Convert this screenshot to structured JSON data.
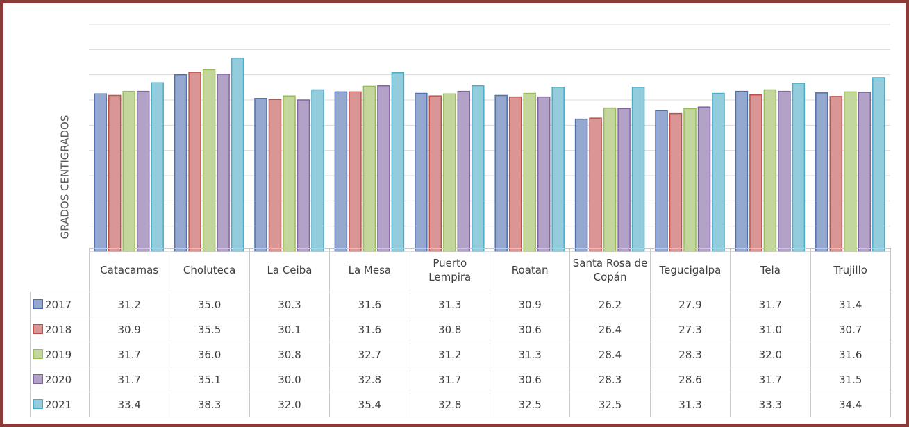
{
  "chart_data": {
    "type": "bar",
    "y_label": "GRADOS CENTIGRADOS",
    "categories": [
      "Catacamas",
      "Choluteca",
      "La Ceiba",
      "La Mesa",
      "Puerto Lempira",
      "Roatan",
      "Santa Rosa de Copán",
      "Tegucigalpa",
      "Tela",
      "Trujillo"
    ],
    "ylim": [
      0,
      45
    ],
    "yticks": [
      0,
      5,
      10,
      15,
      20,
      25,
      30,
      35,
      40,
      45
    ],
    "grid": true,
    "series": [
      {
        "name": "2017",
        "color": "#95a9d0",
        "edge": "#4f6faf",
        "values": [
          31.2,
          35.0,
          30.3,
          31.6,
          31.3,
          30.9,
          26.2,
          27.9,
          31.7,
          31.4
        ],
        "value_labels": [
          "31.2",
          "35.0",
          "30.3",
          "31.6",
          "31.3",
          "30.9",
          "26.2",
          "27.9",
          "31.7",
          "31.4"
        ]
      },
      {
        "name": "2018",
        "color": "#d99694",
        "edge": "#c0504d",
        "values": [
          30.9,
          35.5,
          30.1,
          31.6,
          30.8,
          30.6,
          26.4,
          27.3,
          31.0,
          30.7
        ],
        "value_labels": [
          "30.9",
          "35.5",
          "30.1",
          "31.6",
          "30.8",
          "30.6",
          "26.4",
          "27.3",
          "31.0",
          "30.7"
        ]
      },
      {
        "name": "2019",
        "color": "#c3d69b",
        "edge": "#9bbb59",
        "values": [
          31.7,
          36.0,
          30.8,
          32.7,
          31.2,
          31.3,
          28.4,
          28.3,
          32.0,
          31.6
        ],
        "value_labels": [
          "31.7",
          "36.0",
          "30.8",
          "32.7",
          "31.2",
          "31.3",
          "28.4",
          "28.3",
          "32.0",
          "31.6"
        ]
      },
      {
        "name": "2020",
        "color": "#b3a2c7",
        "edge": "#8064a2",
        "values": [
          31.7,
          35.1,
          30.0,
          32.8,
          31.7,
          30.6,
          28.3,
          28.6,
          31.7,
          31.5
        ],
        "value_labels": [
          "31.7",
          "35.1",
          "30.0",
          "32.8",
          "31.7",
          "30.6",
          "28.3",
          "28.6",
          "31.7",
          "31.5"
        ]
      },
      {
        "name": "2021",
        "color": "#93cddd",
        "edge": "#4bacc6",
        "values": [
          33.4,
          38.3,
          32.0,
          35.4,
          32.8,
          32.5,
          32.5,
          31.3,
          33.3,
          34.4
        ],
        "value_labels": [
          "33.4",
          "38.3",
          "32.0",
          "35.4",
          "32.8",
          "32.5",
          "32.5",
          "31.3",
          "33.3",
          "34.4"
        ]
      }
    ]
  }
}
